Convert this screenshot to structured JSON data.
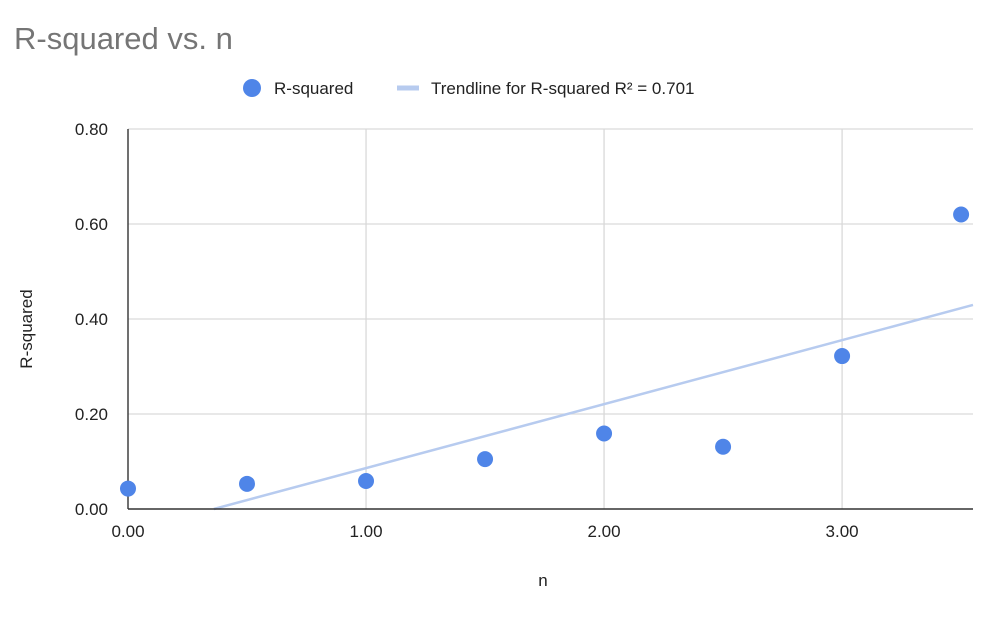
{
  "chart_data": {
    "type": "scatter",
    "title": "R-squared vs. n",
    "xlabel": "n",
    "ylabel": "R-squared",
    "xlim": [
      0,
      3.55
    ],
    "ylim": [
      0,
      0.8
    ],
    "x_ticks": [
      "0.00",
      "1.00",
      "2.00",
      "3.00"
    ],
    "x_tick_values": [
      0,
      1,
      2,
      3
    ],
    "y_ticks": [
      "0.00",
      "0.20",
      "0.40",
      "0.60",
      "0.80"
    ],
    "y_tick_values": [
      0,
      0.2,
      0.4,
      0.6,
      0.8
    ],
    "grid": true,
    "legend_position": "top",
    "series": [
      {
        "name": "R-squared",
        "color": "#4f85e8",
        "points": [
          {
            "x": 0.0,
            "y": 0.043
          },
          {
            "x": 0.5,
            "y": 0.053
          },
          {
            "x": 1.0,
            "y": 0.059
          },
          {
            "x": 1.5,
            "y": 0.105
          },
          {
            "x": 2.0,
            "y": 0.159
          },
          {
            "x": 2.5,
            "y": 0.131
          },
          {
            "x": 3.0,
            "y": 0.322
          },
          {
            "x": 3.5,
            "y": 0.62
          }
        ]
      }
    ],
    "trendline": {
      "name": "Trendline for R-squared R² = 0.701",
      "color": "#b7cbef",
      "slope": 0.1347,
      "intercept": -0.0486
    }
  }
}
